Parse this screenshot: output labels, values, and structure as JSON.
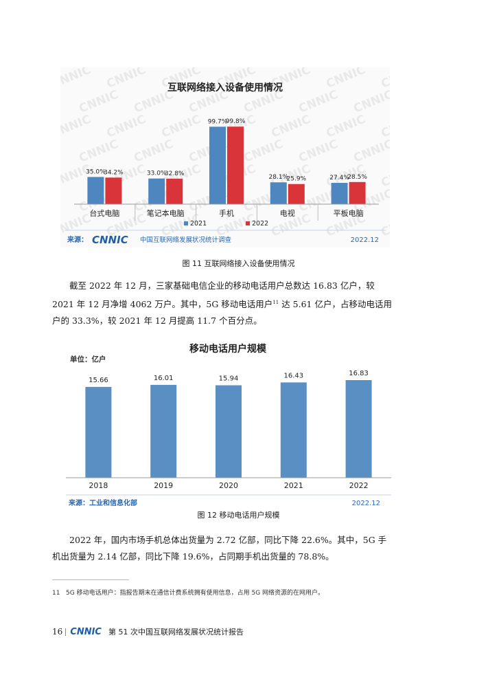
{
  "figure11": {
    "caption": "图 11  互联网络接入设备使用情况",
    "watermark": "CNNIC",
    "source_prefix": "来源：",
    "source_logo": "CNNIC",
    "source_text": "中国互联网络发展状况统计调查",
    "date": "2022.12",
    "chart_data": {
      "type": "bar",
      "title": "互联网络接入设备使用情况",
      "categories": [
        "台式电脑",
        "笔记本电脑",
        "手机",
        "电视",
        "平板电脑"
      ],
      "series": [
        {
          "name": "2021",
          "values": [
            35.0,
            33.0,
            99.7,
            28.1,
            27.4
          ],
          "labels": [
            "35.0%",
            "33.0%",
            "99.7%",
            "28.1%",
            "27.4%"
          ],
          "color": "#4e86c0"
        },
        {
          "name": "2022",
          "values": [
            34.2,
            32.8,
            99.8,
            25.9,
            28.5
          ],
          "labels": [
            "34.2%",
            "32.8%",
            "99.8%",
            "25.9%",
            "28.5%"
          ],
          "color": "#d9343a"
        }
      ],
      "ylim": [
        0,
        100
      ]
    }
  },
  "paragraph1": [
    "截至 2022 年 12 月，三家基础电信企业的移动电话用户总数达 16.83 亿户，较",
    "2021 年 12 月净增 4062 万户。其中，5G 移动电话用户",
    " 达 5.61 亿户，占移动电话用",
    "户的 33.3%，较 2021 年 12 月提高 11.7 个百分点。"
  ],
  "footnote_ref": "11",
  "figure12": {
    "caption": "图 12  移动电话用户规模",
    "unit": "单位：亿户",
    "source_text": "来源：工业和信息化部",
    "date": "2022.12",
    "chart_data": {
      "type": "bar",
      "title": "移动电话用户规模",
      "categories": [
        "2018",
        "2019",
        "2020",
        "2021",
        "2022"
      ],
      "values": [
        15.66,
        16.01,
        15.94,
        16.43,
        16.83
      ],
      "labels": [
        "15.66",
        "16.01",
        "15.94",
        "16.43",
        "16.83"
      ],
      "color": "#5a8fc4",
      "ylim": [
        0,
        16.83
      ]
    }
  },
  "paragraph2": [
    "2022 年，国内市场手机总体出货量为 2.72 亿部，同比下降 22.6%。其中，5G 手",
    "机出货量为 2.14 亿部，同比下降 19.6%，占同期手机出货量的 78.8%。"
  ],
  "footnote": {
    "number": "11",
    "text": "5G 移动电话用户：指报告期末在通信计费系统拥有使用信息，占用 5G 网络资源的在网用户。"
  },
  "footer": {
    "page_number": "16",
    "logo": "CNNIC",
    "title": "第 51 次中国互联网络发展状况统计报告"
  },
  "colors": {
    "bar_blue": "#4e86c0",
    "bar_red": "#d9343a",
    "bar2_blue": "#5a8fc4",
    "source_blue": "#2a66b0"
  }
}
